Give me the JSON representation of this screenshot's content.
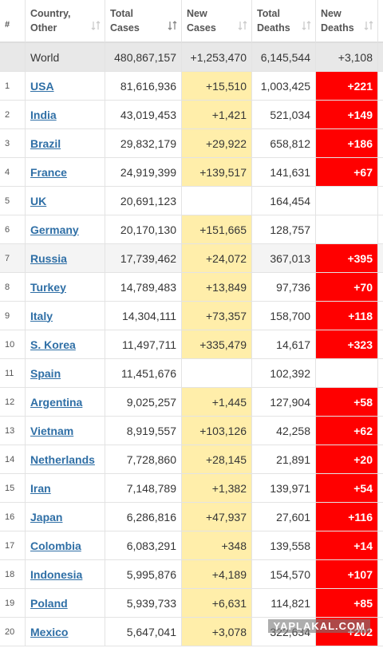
{
  "table": {
    "header": [
      "#",
      "Country, Other",
      "Total Cases",
      "New Cases",
      "Total Deaths",
      "New Deaths"
    ],
    "world": [
      "World",
      "480,867,157",
      "+1,253,470",
      "6,145,544",
      "+3,108"
    ],
    "rows": [
      [
        "1",
        "USA",
        "81,616,936",
        "+15,510",
        "1,003,425",
        "+221"
      ],
      [
        "2",
        "India",
        "43,019,453",
        "+1,421",
        "521,034",
        "+149"
      ],
      [
        "3",
        "Brazil",
        "29,832,179",
        "+29,922",
        "658,812",
        "+186"
      ],
      [
        "4",
        "France",
        "24,919,399",
        "+139,517",
        "141,631",
        "+67"
      ],
      [
        "5",
        "UK",
        "20,691,123",
        null,
        "164,454",
        null
      ],
      [
        "6",
        "Germany",
        "20,170,130",
        "+151,665",
        "128,757",
        null
      ],
      [
        "7",
        "Russia",
        "17,739,462",
        "+24,072",
        "367,013",
        "+395"
      ],
      [
        "8",
        "Turkey",
        "14,789,483",
        "+13,849",
        "97,736",
        "+70"
      ],
      [
        "9",
        "Italy",
        "14,304,111",
        "+73,357",
        "158,700",
        "+118"
      ],
      [
        "10",
        "S. Korea",
        "11,497,711",
        "+335,479",
        "14,617",
        "+323"
      ],
      [
        "11",
        "Spain",
        "11,451,676",
        null,
        "102,392",
        null
      ],
      [
        "12",
        "Argentina",
        "9,025,257",
        "+1,445",
        "127,904",
        "+58"
      ],
      [
        "13",
        "Vietnam",
        "8,919,557",
        "+103,126",
        "42,258",
        "+62"
      ],
      [
        "14",
        "Netherlands",
        "7,728,860",
        "+28,145",
        "21,891",
        "+20"
      ],
      [
        "15",
        "Iran",
        "7,148,789",
        "+1,382",
        "139,971",
        "+54"
      ],
      [
        "16",
        "Japan",
        "6,286,816",
        "+47,937",
        "27,601",
        "+116"
      ],
      [
        "17",
        "Colombia",
        "6,083,291",
        "+348",
        "139,558",
        "+14"
      ],
      [
        "18",
        "Indonesia",
        "5,995,876",
        "+4,189",
        "154,570",
        "+107"
      ],
      [
        "19",
        "Poland",
        "5,939,733",
        "+6,631",
        "114,821",
        "+85"
      ],
      [
        "20",
        "Mexico",
        "5,647,041",
        "+3,078",
        "322,634",
        "+202"
      ]
    ]
  },
  "watermark": "YAPLAKAL.COM"
}
